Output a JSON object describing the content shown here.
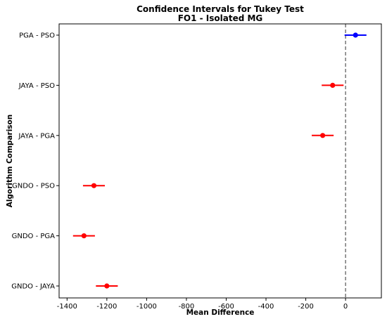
{
  "chart_data": {
    "type": "scatter",
    "title": "Confidence Intervals for Tukey Test",
    "subtitle": "FO1 - Isolated MG",
    "xlabel": "Mean Difference",
    "ylabel": "Algorithm Comparison",
    "xlim": [
      -1440,
      180
    ],
    "x_ticks": [
      -1400,
      -1200,
      -1000,
      -800,
      -600,
      -400,
      -200,
      0
    ],
    "x_tick_labels": [
      "-1400",
      "-1200",
      "-1000",
      "-800",
      "-600",
      "-400",
      "-200",
      "0"
    ],
    "reference_line": {
      "x": 0,
      "style": "dashed",
      "color": "#555555"
    },
    "grid": false,
    "comparisons": [
      {
        "label": "PGA - PSO",
        "mean": 50,
        "lower": -5,
        "upper": 105,
        "color": "#0000ff"
      },
      {
        "label": "JAYA - PSO",
        "mean": -65,
        "lower": -120,
        "upper": -10,
        "color": "#ff0000"
      },
      {
        "label": "JAYA - PGA",
        "mean": -115,
        "lower": -170,
        "upper": -60,
        "color": "#ff0000"
      },
      {
        "label": "GNDO - PSO",
        "mean": -1265,
        "lower": -1320,
        "upper": -1210,
        "color": "#ff0000"
      },
      {
        "label": "GNDO - PGA",
        "mean": -1315,
        "lower": -1370,
        "upper": -1260,
        "color": "#ff0000"
      },
      {
        "label": "GNDO - JAYA",
        "mean": -1200,
        "lower": -1255,
        "upper": -1145,
        "color": "#ff0000"
      }
    ]
  }
}
